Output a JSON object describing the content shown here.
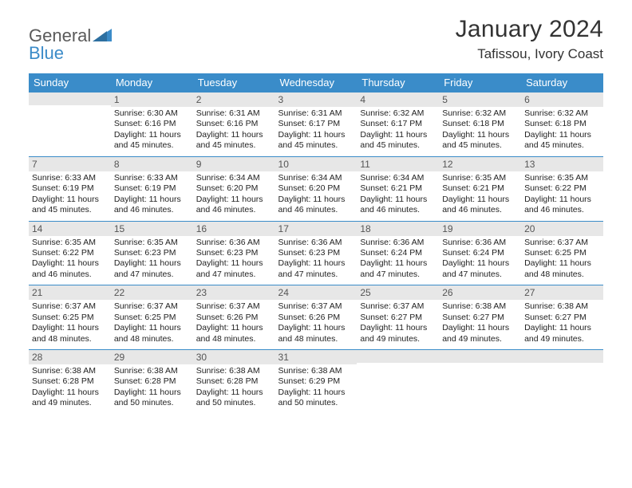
{
  "logo": {
    "line1": "General",
    "line2": "Blue",
    "text_color": "#5a5a5a",
    "accent_color": "#3b8bc8"
  },
  "title": "January 2024",
  "location": "Tafissou, Ivory Coast",
  "colors": {
    "header_bg": "#3a8cc9",
    "header_text": "#ffffff",
    "daynum_bg": "#e7e7e7",
    "daynum_text": "#555555",
    "body_text": "#222222",
    "page_bg": "#ffffff",
    "rule": "#3a8cc9"
  },
  "typography": {
    "title_fontsize": 30,
    "location_fontsize": 17,
    "weekday_fontsize": 13,
    "daynum_fontsize": 12,
    "cell_fontsize": 10.5
  },
  "weekdays": [
    "Sunday",
    "Monday",
    "Tuesday",
    "Wednesday",
    "Thursday",
    "Friday",
    "Saturday"
  ],
  "weeks": [
    [
      {
        "num": "",
        "lines": []
      },
      {
        "num": "1",
        "lines": [
          "Sunrise: 6:30 AM",
          "Sunset: 6:16 PM",
          "Daylight: 11 hours and 45 minutes."
        ]
      },
      {
        "num": "2",
        "lines": [
          "Sunrise: 6:31 AM",
          "Sunset: 6:16 PM",
          "Daylight: 11 hours and 45 minutes."
        ]
      },
      {
        "num": "3",
        "lines": [
          "Sunrise: 6:31 AM",
          "Sunset: 6:17 PM",
          "Daylight: 11 hours and 45 minutes."
        ]
      },
      {
        "num": "4",
        "lines": [
          "Sunrise: 6:32 AM",
          "Sunset: 6:17 PM",
          "Daylight: 11 hours and 45 minutes."
        ]
      },
      {
        "num": "5",
        "lines": [
          "Sunrise: 6:32 AM",
          "Sunset: 6:18 PM",
          "Daylight: 11 hours and 45 minutes."
        ]
      },
      {
        "num": "6",
        "lines": [
          "Sunrise: 6:32 AM",
          "Sunset: 6:18 PM",
          "Daylight: 11 hours and 45 minutes."
        ]
      }
    ],
    [
      {
        "num": "7",
        "lines": [
          "Sunrise: 6:33 AM",
          "Sunset: 6:19 PM",
          "Daylight: 11 hours and 45 minutes."
        ]
      },
      {
        "num": "8",
        "lines": [
          "Sunrise: 6:33 AM",
          "Sunset: 6:19 PM",
          "Daylight: 11 hours and 46 minutes."
        ]
      },
      {
        "num": "9",
        "lines": [
          "Sunrise: 6:34 AM",
          "Sunset: 6:20 PM",
          "Daylight: 11 hours and 46 minutes."
        ]
      },
      {
        "num": "10",
        "lines": [
          "Sunrise: 6:34 AM",
          "Sunset: 6:20 PM",
          "Daylight: 11 hours and 46 minutes."
        ]
      },
      {
        "num": "11",
        "lines": [
          "Sunrise: 6:34 AM",
          "Sunset: 6:21 PM",
          "Daylight: 11 hours and 46 minutes."
        ]
      },
      {
        "num": "12",
        "lines": [
          "Sunrise: 6:35 AM",
          "Sunset: 6:21 PM",
          "Daylight: 11 hours and 46 minutes."
        ]
      },
      {
        "num": "13",
        "lines": [
          "Sunrise: 6:35 AM",
          "Sunset: 6:22 PM",
          "Daylight: 11 hours and 46 minutes."
        ]
      }
    ],
    [
      {
        "num": "14",
        "lines": [
          "Sunrise: 6:35 AM",
          "Sunset: 6:22 PM",
          "Daylight: 11 hours and 46 minutes."
        ]
      },
      {
        "num": "15",
        "lines": [
          "Sunrise: 6:35 AM",
          "Sunset: 6:23 PM",
          "Daylight: 11 hours and 47 minutes."
        ]
      },
      {
        "num": "16",
        "lines": [
          "Sunrise: 6:36 AM",
          "Sunset: 6:23 PM",
          "Daylight: 11 hours and 47 minutes."
        ]
      },
      {
        "num": "17",
        "lines": [
          "Sunrise: 6:36 AM",
          "Sunset: 6:23 PM",
          "Daylight: 11 hours and 47 minutes."
        ]
      },
      {
        "num": "18",
        "lines": [
          "Sunrise: 6:36 AM",
          "Sunset: 6:24 PM",
          "Daylight: 11 hours and 47 minutes."
        ]
      },
      {
        "num": "19",
        "lines": [
          "Sunrise: 6:36 AM",
          "Sunset: 6:24 PM",
          "Daylight: 11 hours and 47 minutes."
        ]
      },
      {
        "num": "20",
        "lines": [
          "Sunrise: 6:37 AM",
          "Sunset: 6:25 PM",
          "Daylight: 11 hours and 48 minutes."
        ]
      }
    ],
    [
      {
        "num": "21",
        "lines": [
          "Sunrise: 6:37 AM",
          "Sunset: 6:25 PM",
          "Daylight: 11 hours and 48 minutes."
        ]
      },
      {
        "num": "22",
        "lines": [
          "Sunrise: 6:37 AM",
          "Sunset: 6:25 PM",
          "Daylight: 11 hours and 48 minutes."
        ]
      },
      {
        "num": "23",
        "lines": [
          "Sunrise: 6:37 AM",
          "Sunset: 6:26 PM",
          "Daylight: 11 hours and 48 minutes."
        ]
      },
      {
        "num": "24",
        "lines": [
          "Sunrise: 6:37 AM",
          "Sunset: 6:26 PM",
          "Daylight: 11 hours and 48 minutes."
        ]
      },
      {
        "num": "25",
        "lines": [
          "Sunrise: 6:37 AM",
          "Sunset: 6:27 PM",
          "Daylight: 11 hours and 49 minutes."
        ]
      },
      {
        "num": "26",
        "lines": [
          "Sunrise: 6:38 AM",
          "Sunset: 6:27 PM",
          "Daylight: 11 hours and 49 minutes."
        ]
      },
      {
        "num": "27",
        "lines": [
          "Sunrise: 6:38 AM",
          "Sunset: 6:27 PM",
          "Daylight: 11 hours and 49 minutes."
        ]
      }
    ],
    [
      {
        "num": "28",
        "lines": [
          "Sunrise: 6:38 AM",
          "Sunset: 6:28 PM",
          "Daylight: 11 hours and 49 minutes."
        ]
      },
      {
        "num": "29",
        "lines": [
          "Sunrise: 6:38 AM",
          "Sunset: 6:28 PM",
          "Daylight: 11 hours and 50 minutes."
        ]
      },
      {
        "num": "30",
        "lines": [
          "Sunrise: 6:38 AM",
          "Sunset: 6:28 PM",
          "Daylight: 11 hours and 50 minutes."
        ]
      },
      {
        "num": "31",
        "lines": [
          "Sunrise: 6:38 AM",
          "Sunset: 6:29 PM",
          "Daylight: 11 hours and 50 minutes."
        ]
      },
      {
        "num": "",
        "lines": []
      },
      {
        "num": "",
        "lines": []
      },
      {
        "num": "",
        "lines": []
      }
    ]
  ]
}
